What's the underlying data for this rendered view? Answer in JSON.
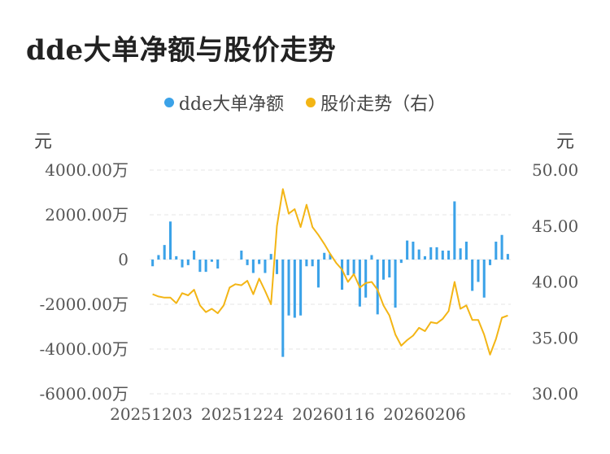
{
  "header": {
    "title": "dde大单净额与股价走势"
  },
  "legend": {
    "items": [
      {
        "label": "dde大单净额",
        "color": "#3ba2e8"
      },
      {
        "label": "股价走势（右）",
        "color": "#f3b515"
      }
    ]
  },
  "chart_data": {
    "type": "bar+line",
    "left_unit": "元",
    "right_unit": "元",
    "left_ticks": [
      "4000.00万",
      "2000.00万",
      "0",
      "-2000.00万",
      "-4000.00万",
      "-6000.00万"
    ],
    "right_ticks": [
      "50.00",
      "45.00",
      "40.00",
      "35.00",
      "30.00"
    ],
    "x_tick_labels": [
      "20251203",
      "20251224",
      "20260116",
      "20260206"
    ],
    "left_range": [
      -6000,
      4000
    ],
    "right_range": [
      30,
      50
    ],
    "series": [
      {
        "name": "dde大单净额",
        "type": "bar",
        "axis": "left",
        "color": "#3ba2e8",
        "values": [
          -300,
          200,
          650,
          1700,
          150,
          -350,
          -250,
          400,
          -550,
          -550,
          -100,
          -400,
          0,
          0,
          0,
          400,
          -250,
          -600,
          -200,
          -600,
          250,
          -650,
          -4350,
          -2500,
          -2600,
          -2500,
          -300,
          -300,
          -1250,
          300,
          250,
          0,
          -1350,
          -700,
          -650,
          -2100,
          -1700,
          200,
          -2450,
          -900,
          -800,
          -2150,
          -150,
          850,
          800,
          450,
          150,
          550,
          550,
          400,
          400,
          2600,
          500,
          800,
          -1400,
          -1000,
          -1700,
          -250,
          800,
          1100,
          250
        ]
      },
      {
        "name": "股价走势（右）",
        "type": "line",
        "axis": "right",
        "color": "#f3b515",
        "values": [
          38.9,
          38.7,
          38.6,
          38.6,
          38.1,
          39.0,
          38.8,
          39.3,
          37.9,
          37.3,
          37.6,
          37.2,
          37.9,
          39.5,
          39.8,
          39.7,
          40.1,
          38.9,
          40.3,
          39.2,
          38.0,
          45.0,
          48.3,
          46.1,
          46.5,
          44.9,
          46.9,
          44.9,
          44.2,
          43.4,
          42.5,
          41.7,
          41.1,
          40.0,
          40.7,
          39.5,
          39.9,
          40.0,
          39.3,
          37.9,
          37.0,
          35.3,
          34.3,
          34.8,
          35.2,
          35.9,
          35.6,
          36.4,
          36.3,
          36.7,
          37.4,
          40.0,
          37.6,
          37.9,
          36.6,
          36.6,
          35.3,
          33.5,
          34.9,
          36.8,
          37.0
        ]
      }
    ]
  }
}
